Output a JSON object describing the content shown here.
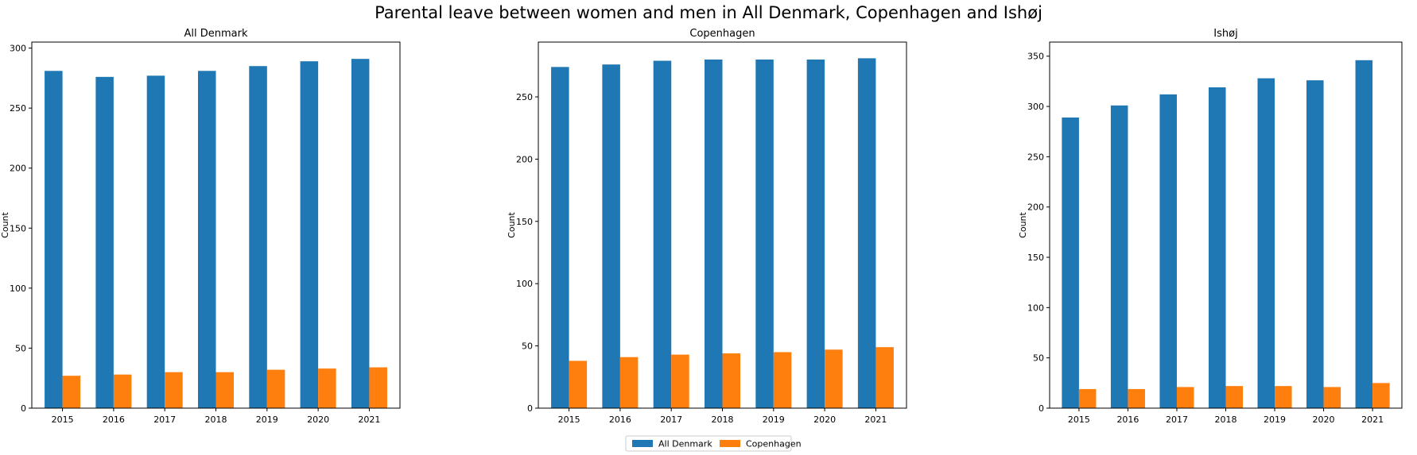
{
  "figure": {
    "title": "Parental leave between women and men in All Denmark, Copenhagen and Ishøj"
  },
  "legend": {
    "items": [
      {
        "label": "All Denmark",
        "color": "#1f77b4"
      },
      {
        "label": "Copenhagen",
        "color": "#ff7f0e"
      }
    ]
  },
  "chart_data": [
    {
      "type": "bar",
      "title": "All Denmark",
      "xlabel": "",
      "ylabel": "Count",
      "categories": [
        "2015",
        "2016",
        "2017",
        "2018",
        "2019",
        "2020",
        "2021"
      ],
      "ylim": [
        0,
        305
      ],
      "yticks": [
        0,
        50,
        100,
        150,
        200,
        250,
        300
      ],
      "series": [
        {
          "name": "All Denmark",
          "color": "#1f77b4",
          "values": [
            281,
            276,
            277,
            281,
            285,
            289,
            291
          ]
        },
        {
          "name": "Copenhagen",
          "color": "#ff7f0e",
          "values": [
            27,
            28,
            30,
            30,
            32,
            33,
            34
          ]
        }
      ]
    },
    {
      "type": "bar",
      "title": "Copenhagen",
      "xlabel": "",
      "ylabel": "Count",
      "categories": [
        "2015",
        "2016",
        "2017",
        "2018",
        "2019",
        "2020",
        "2021"
      ],
      "ylim": [
        0,
        294
      ],
      "yticks": [
        0,
        50,
        100,
        150,
        200,
        250
      ],
      "series": [
        {
          "name": "All Denmark",
          "color": "#1f77b4",
          "values": [
            274,
            276,
            279,
            280,
            280,
            280,
            281
          ]
        },
        {
          "name": "Copenhagen",
          "color": "#ff7f0e",
          "values": [
            38,
            41,
            43,
            44,
            45,
            47,
            49
          ]
        }
      ]
    },
    {
      "type": "bar",
      "title": "Ishøj",
      "xlabel": "",
      "ylabel": "Count",
      "categories": [
        "2015",
        "2016",
        "2017",
        "2018",
        "2019",
        "2020",
        "2021"
      ],
      "ylim": [
        0,
        364
      ],
      "yticks": [
        0,
        50,
        100,
        150,
        200,
        250,
        300,
        350
      ],
      "series": [
        {
          "name": "All Denmark",
          "color": "#1f77b4",
          "values": [
            289,
            301,
            312,
            319,
            328,
            326,
            346
          ]
        },
        {
          "name": "Copenhagen",
          "color": "#ff7f0e",
          "values": [
            19,
            19,
            21,
            22,
            22,
            21,
            25
          ]
        }
      ]
    }
  ]
}
